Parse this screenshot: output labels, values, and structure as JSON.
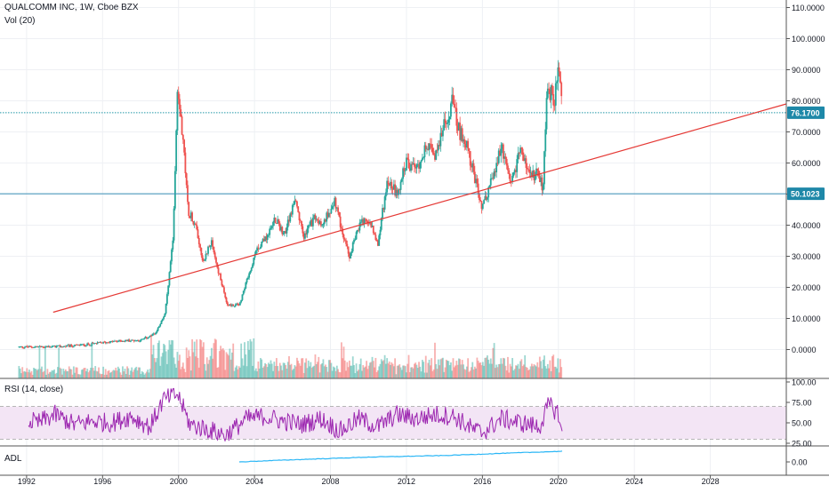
{
  "header": {
    "symbol_line": "QUALCOMM INC, 1W, Cboe BZX",
    "volume_label": "Vol (20)"
  },
  "panes": {
    "rsi_label": "RSI (14, close)",
    "adl_label": "ADL"
  },
  "colors": {
    "up": "#26a69a",
    "down": "#ef5350",
    "trendline": "#e53935",
    "price_line": "#2196a6",
    "support_line": "#3a8fb7",
    "rsi_line": "#9c27b0",
    "rsi_band": "#f3e5f5",
    "adl_line": "#29b6f6",
    "axis_text": "#131722",
    "badge": "#1e88a8"
  },
  "chart_data": {
    "type": "candlestick",
    "x_axis": {
      "ticks": [
        "1992",
        "1996",
        "2000",
        "2004",
        "2008",
        "2012",
        "2016",
        "2020",
        "2024",
        "2028"
      ],
      "range": [
        1990.6,
        2032.0
      ]
    },
    "price_axis": {
      "ticks": [
        "0.0000",
        "10.0000",
        "20.0000",
        "30.0000",
        "40.0000",
        "50.0000",
        "60.0000",
        "70.0000",
        "80.0000",
        "90.0000",
        "100.0000",
        "110.0000"
      ],
      "range": [
        -8,
        110
      ]
    },
    "rsi_axis": {
      "ticks": [
        "25.00",
        "50.00",
        "75.00",
        "100.00"
      ],
      "range": [
        20,
        100
      ],
      "band": [
        30,
        70
      ]
    },
    "adl_axis": {
      "ticks": [
        "0.00"
      ]
    },
    "price_labels": [
      {
        "value": 76.17,
        "text": "76.1700",
        "style": "dotted"
      },
      {
        "value": 50.1023,
        "text": "50.1023",
        "style": "solid"
      }
    ],
    "trendline": {
      "x1": 1993.4,
      "y1": 12.0,
      "x2": 2032.0,
      "y2": 79.0
    },
    "price_path": [
      [
        1991.6,
        0.8
      ],
      [
        1993.0,
        0.9
      ],
      [
        1994.0,
        1.0
      ],
      [
        1995.0,
        1.5
      ],
      [
        1996.0,
        2.2
      ],
      [
        1997.0,
        2.8
      ],
      [
        1998.0,
        3.0
      ],
      [
        1998.8,
        5.0
      ],
      [
        1999.3,
        12.0
      ],
      [
        1999.7,
        35.0
      ],
      [
        1999.95,
        85.0
      ],
      [
        2000.2,
        70.0
      ],
      [
        2000.5,
        45.0
      ],
      [
        2000.9,
        40.0
      ],
      [
        2001.3,
        28.0
      ],
      [
        2001.7,
        35.0
      ],
      [
        2002.1,
        25.0
      ],
      [
        2002.6,
        14.0
      ],
      [
        2003.2,
        14.5
      ],
      [
        2003.7,
        24.0
      ],
      [
        2004.2,
        33.0
      ],
      [
        2004.7,
        37.0
      ],
      [
        2005.1,
        42.0
      ],
      [
        2005.6,
        37.0
      ],
      [
        2006.1,
        48.0
      ],
      [
        2006.6,
        36.0
      ],
      [
        2007.1,
        42.0
      ],
      [
        2007.6,
        40.0
      ],
      [
        2008.2,
        48.0
      ],
      [
        2008.6,
        38.0
      ],
      [
        2009.0,
        30.0
      ],
      [
        2009.5,
        40.0
      ],
      [
        2010.0,
        42.0
      ],
      [
        2010.5,
        34.0
      ],
      [
        2011.0,
        55.0
      ],
      [
        2011.5,
        50.0
      ],
      [
        2012.0,
        60.0
      ],
      [
        2012.5,
        58.0
      ],
      [
        2013.0,
        65.0
      ],
      [
        2013.5,
        63.0
      ],
      [
        2014.0,
        72.0
      ],
      [
        2014.4,
        80.0
      ],
      [
        2014.8,
        70.0
      ],
      [
        2015.2,
        65.0
      ],
      [
        2015.6,
        55.0
      ],
      [
        2016.0,
        45.0
      ],
      [
        2016.5,
        55.0
      ],
      [
        2017.0,
        65.0
      ],
      [
        2017.5,
        52.0
      ],
      [
        2018.0,
        65.0
      ],
      [
        2018.5,
        55.0
      ],
      [
        2018.9,
        57.0
      ],
      [
        2019.2,
        52.0
      ],
      [
        2019.4,
        85.0
      ],
      [
        2019.8,
        80.0
      ],
      [
        2020.0,
        90.0
      ],
      [
        2020.2,
        76.17
      ]
    ],
    "rsi_path": [
      [
        1991.6,
        55
      ],
      [
        1992.6,
        50
      ],
      [
        1993.5,
        60
      ],
      [
        1994.5,
        48
      ],
      [
        1995.5,
        52
      ],
      [
        1996.5,
        50
      ],
      [
        1997.5,
        58
      ],
      [
        1998.5,
        45
      ],
      [
        1999.2,
        78
      ],
      [
        1999.95,
        85
      ],
      [
        2000.6,
        48
      ],
      [
        2001.5,
        42
      ],
      [
        2002.5,
        35
      ],
      [
        2003.6,
        55
      ],
      [
        2004.5,
        58
      ],
      [
        2005.5,
        52
      ],
      [
        2006.5,
        48
      ],
      [
        2007.5,
        55
      ],
      [
        2008.5,
        40
      ],
      [
        2009.5,
        55
      ],
      [
        2010.5,
        45
      ],
      [
        2011.5,
        60
      ],
      [
        2012.5,
        55
      ],
      [
        2013.5,
        60
      ],
      [
        2014.5,
        58
      ],
      [
        2015.5,
        42
      ],
      [
        2016.0,
        38
      ],
      [
        2017.0,
        55
      ],
      [
        2018.0,
        50
      ],
      [
        2019.0,
        45
      ],
      [
        2019.5,
        72
      ],
      [
        2020.0,
        62
      ],
      [
        2020.2,
        33
      ]
    ],
    "adl_path": [
      [
        2003.2,
        0.0
      ],
      [
        2006.0,
        0.2
      ],
      [
        2010.0,
        0.45
      ],
      [
        2014.0,
        0.6
      ],
      [
        2017.0,
        0.8
      ],
      [
        2020.2,
        1.0
      ]
    ]
  }
}
